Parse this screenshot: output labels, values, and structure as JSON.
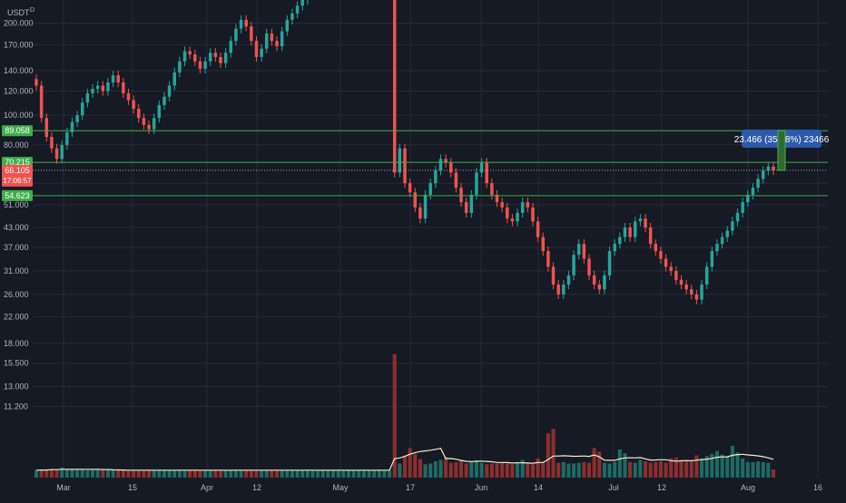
{
  "symbol": {
    "label": "USDT",
    "interval": "D"
  },
  "colors": {
    "background": "#161a25",
    "grid": "#262b37",
    "up": "#26a69a",
    "down": "#ef5350",
    "volume_up": "#1e6b64",
    "volume_down": "#8b2f31",
    "level_line": "#3fae49",
    "ma_line": "#f2edc7",
    "axis_text": "#b2b5be",
    "measure_box": "#2d5aa8"
  },
  "axis": {
    "y_ticks": [
      "200.000",
      "170.000",
      "140.000",
      "120.000",
      "100.000",
      "80.000",
      "60.000",
      "51.000",
      "43.000",
      "37.000",
      "31.000",
      "26.000",
      "22.000",
      "18.000",
      "15.500",
      "13.000",
      "11.200"
    ],
    "x_ticks": [
      "Mar",
      "15",
      "Apr",
      "12",
      "May",
      "17",
      "Jun",
      "14",
      "Jul",
      "12",
      "Aug",
      "16"
    ]
  },
  "levels": [
    {
      "label": "89.058",
      "kind": "support"
    },
    {
      "label": "70.215",
      "kind": "support"
    },
    {
      "label": "54.623",
      "kind": "support"
    }
  ],
  "current_price": {
    "label": "66.105",
    "countdown": "17:06:57"
  },
  "measure": {
    "label": "23.466 (35.78%) 23466"
  },
  "chart_data": {
    "type": "candlestick",
    "scale": "log",
    "ylim": [
      10,
      230
    ],
    "x_ticks": [
      "Mar",
      "15",
      "Apr",
      "12",
      "May",
      "17",
      "Jun",
      "14",
      "Jul",
      "12",
      "Aug",
      "16"
    ],
    "series": [
      {
        "close": [
          125,
          98,
          85,
          78,
          72,
          80,
          88,
          95,
          100,
          110,
          118,
          122,
          125,
          120,
          128,
          135,
          128,
          118,
          112,
          105,
          98,
          93,
          90,
          98,
          108,
          115,
          125,
          138,
          150,
          162,
          158,
          150,
          142,
          150,
          160,
          155,
          148,
          160,
          175,
          192,
          205,
          195,
          175,
          155,
          165,
          185,
          175,
          168,
          188,
          205,
          215,
          228,
          238,
          248,
          265,
          290,
          310,
          330,
          350,
          380,
          385,
          390,
          392,
          395,
          396,
          397,
          398,
          399,
          400,
          400,
          65,
          78,
          60,
          56,
          50,
          46,
          55,
          60,
          66,
          72,
          70,
          65,
          58,
          52,
          48,
          55,
          65,
          70,
          60,
          55,
          52,
          50,
          46,
          45,
          48,
          52,
          50,
          45,
          40,
          36,
          32,
          28,
          26,
          28,
          30,
          35,
          38,
          34,
          30,
          28,
          27,
          30,
          36,
          38,
          40,
          43,
          40,
          45,
          46,
          43,
          38,
          36,
          34,
          32,
          31,
          29,
          28,
          27,
          26,
          25,
          28,
          32,
          36,
          38,
          40,
          42,
          45,
          48,
          52,
          55,
          58,
          62,
          66,
          68,
          66.1
        ],
        "volume": [
          1.0,
          1.05,
          1.05,
          1.2,
          1.1,
          1.35,
          1.15,
          1.05,
          1.2,
          1.1,
          1.0,
          1.0,
          1.0,
          1.0,
          1.0,
          1.0,
          1.0,
          1.0,
          1.0,
          1.0,
          1.0,
          1.0,
          1.0,
          1.0,
          1.0,
          1.0,
          1.0,
          1.0,
          1.0,
          1.0,
          1.0,
          1.0,
          1.0,
          1.0,
          1.0,
          1.0,
          1.0,
          1.0,
          1.0,
          1.0,
          1.0,
          1.0,
          1.0,
          1.0,
          1.0,
          1.0,
          1.0,
          1.0,
          1.0,
          1.0,
          1.0,
          1.0,
          1.0,
          1.0,
          1.0,
          1.0,
          1.0,
          1.0,
          1.0,
          1.0,
          1.0,
          1.0,
          1.0,
          1.0,
          1.0,
          1.0,
          1.0,
          1.0,
          1.0,
          1.0,
          16.7,
          1.9,
          3.0,
          4.0,
          3.2,
          2.5,
          1.8,
          1.9,
          2.2,
          2.4,
          2.8,
          2.0,
          2.1,
          2.4,
          1.9,
          2.2,
          2.3,
          2.0,
          1.8,
          1.9,
          1.9,
          2.0,
          1.9,
          1.8,
          2.1,
          2.4,
          1.9,
          1.8,
          2.6,
          2.0,
          6.0,
          6.6,
          2.0,
          2.1,
          1.9,
          1.9,
          2.0,
          2.1,
          2.0,
          4.0,
          3.5,
          2.0,
          1.9,
          2.1,
          3.8,
          3.3,
          2.1,
          2.0,
          2.4,
          2.2,
          2.0,
          2.1,
          2.2,
          2.0,
          2.6,
          2.7,
          2.4,
          2.4,
          2.2,
          3.0,
          2.6,
          2.9,
          3.2,
          3.6,
          3.1,
          2.8,
          4.3,
          3.4,
          2.6,
          2.1,
          2.1,
          2.2,
          2.1,
          2.0,
          1.1
        ],
        "ma": "volume moving average"
      }
    ]
  }
}
